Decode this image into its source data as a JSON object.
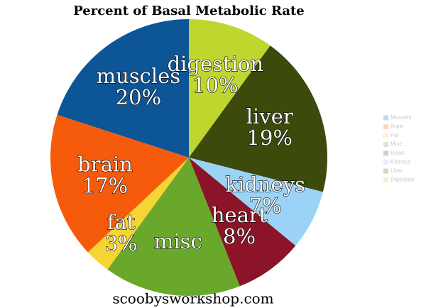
{
  "chart_data": {
    "type": "pie",
    "title": "Percent of Basal Metabolic Rate",
    "categories": [
      "digestion",
      "liver",
      "kidneys",
      "heart",
      "misc",
      "fat",
      "brain",
      "muscles"
    ],
    "values": [
      10,
      19,
      7,
      8,
      16,
      3,
      17,
      20
    ],
    "value_labels": [
      "10%",
      "19%",
      "7%",
      "8%",
      null,
      "3%",
      "17%",
      "20%"
    ],
    "colors": [
      "#bfd62f",
      "#3c4a0c",
      "#9ad3f6",
      "#8b1428",
      "#69a82b",
      "#f6d431",
      "#f65b0c",
      "#0c5597"
    ],
    "legend": {
      "position": "right",
      "labels": [
        "Muscles",
        "Brain",
        "Fat",
        "Misc",
        "Heart",
        "Kidneys",
        "Liver",
        "Digestion"
      ],
      "colors": [
        "#c9d6e4",
        "#fbd8c6",
        "#fcf3cf",
        "#dce9cf",
        "#e1c7cb",
        "#e3f2fb",
        "#d3d6c9",
        "#eef3d2"
      ]
    },
    "footer": "scoobysworkshop.com"
  }
}
